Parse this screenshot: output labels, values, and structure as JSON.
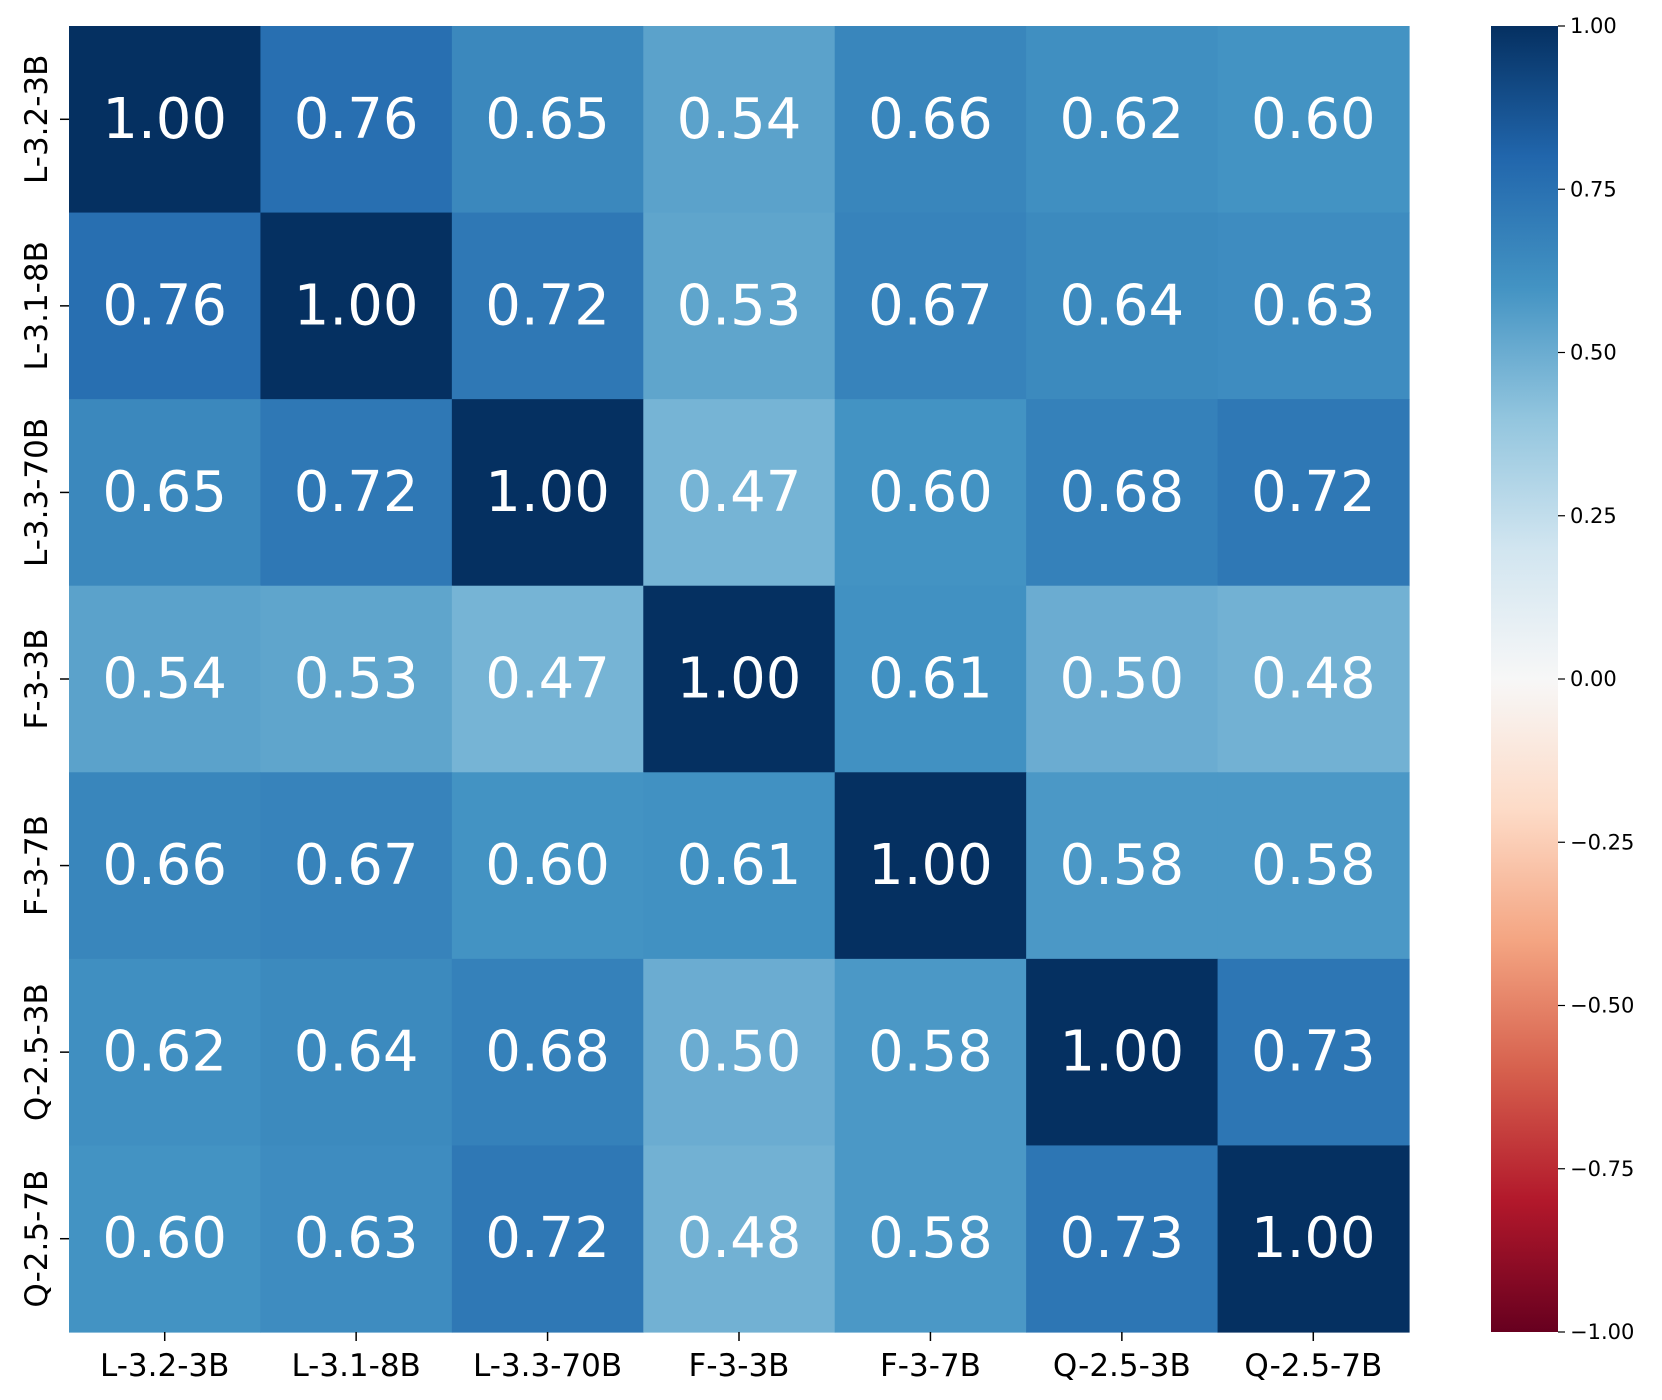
{
  "chart_data": {
    "type": "heatmap",
    "x_labels": [
      "L-3.2-3B",
      "L-3.1-8B",
      "L-3.3-70B",
      "F-3-3B",
      "F-3-7B",
      "Q-2.5-3B",
      "Q-2.5-7B"
    ],
    "y_labels": [
      "L-3.2-3B",
      "L-3.1-8B",
      "L-3.3-70B",
      "F-3-3B",
      "F-3-7B",
      "Q-2.5-3B",
      "Q-2.5-7B"
    ],
    "matrix": [
      [
        1.0,
        0.76,
        0.65,
        0.54,
        0.66,
        0.62,
        0.6
      ],
      [
        0.76,
        1.0,
        0.72,
        0.53,
        0.67,
        0.64,
        0.63
      ],
      [
        0.65,
        0.72,
        1.0,
        0.47,
        0.6,
        0.68,
        0.72
      ],
      [
        0.54,
        0.53,
        0.47,
        1.0,
        0.61,
        0.5,
        0.48
      ],
      [
        0.66,
        0.67,
        0.6,
        0.61,
        1.0,
        0.58,
        0.58
      ],
      [
        0.62,
        0.64,
        0.68,
        0.5,
        0.58,
        1.0,
        0.73
      ],
      [
        0.6,
        0.63,
        0.72,
        0.48,
        0.58,
        0.73,
        1.0
      ]
    ],
    "value_format": "0.00",
    "colormap": "RdBu",
    "vmin": -1.0,
    "vmax": 1.0,
    "colorbar": {
      "placement": "right",
      "ticks": [
        1.0,
        0.75,
        0.5,
        0.25,
        0.0,
        -0.25,
        -0.5,
        -0.75,
        -1.0
      ],
      "tick_labels": [
        "1.00",
        "0.75",
        "0.50",
        "0.25",
        "0.00",
        "−0.25",
        "−0.50",
        "−0.75",
        "−1.00"
      ]
    },
    "grid": false,
    "title": "",
    "xlabel": "",
    "ylabel": ""
  }
}
